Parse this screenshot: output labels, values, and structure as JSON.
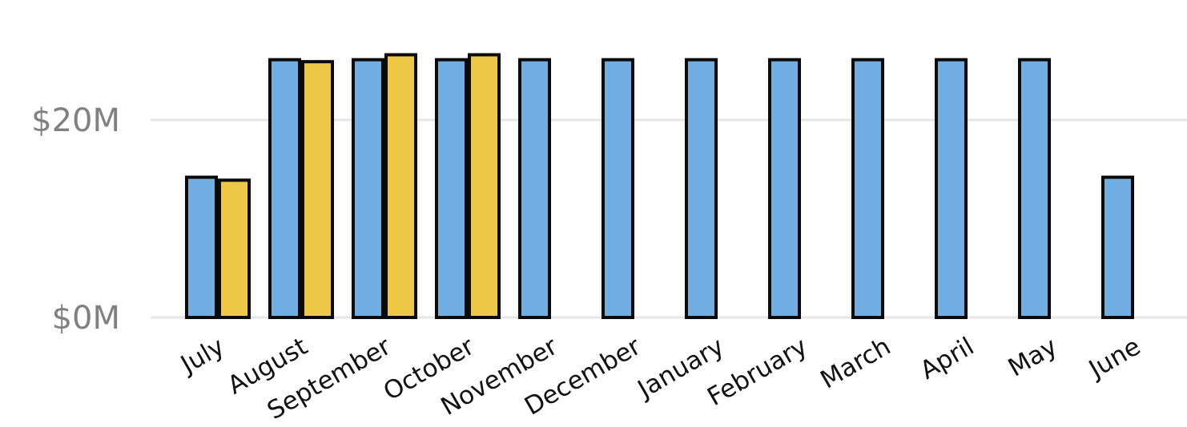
{
  "chart_data": {
    "type": "bar",
    "title": "",
    "xlabel": "",
    "ylabel": "",
    "categories": [
      "July",
      "August",
      "September",
      "October",
      "November",
      "December",
      "January",
      "February",
      "March",
      "April",
      "May",
      "June"
    ],
    "series": [
      {
        "color": "#6fade2",
        "values": [
          14.2,
          26.1,
          26.1,
          26.1,
          26.1,
          26.1,
          26.1,
          26.1,
          26.1,
          26.1,
          26.1,
          14.2
        ]
      },
      {
        "color": "#ecc846",
        "values": [
          13.9,
          25.9,
          26.6,
          26.6,
          null,
          null,
          null,
          null,
          null,
          null,
          null,
          null
        ]
      }
    ],
    "yticks": [
      {
        "value": 0,
        "label": "$0M"
      },
      {
        "value": 20,
        "label": "$20M"
      }
    ],
    "ylim": [
      0,
      32
    ],
    "grid": true,
    "legend": "none"
  }
}
